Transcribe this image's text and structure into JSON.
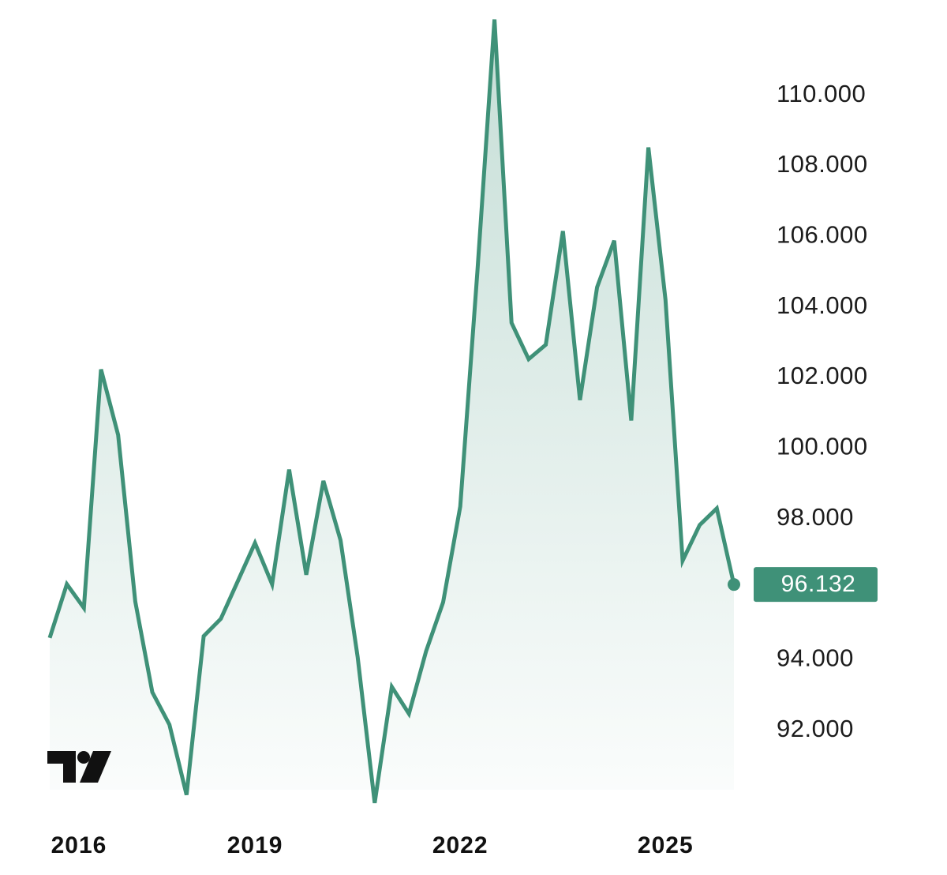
{
  "chart_data": {
    "type": "line",
    "color": "#3f9178",
    "x": [
      2016,
      2016.25,
      2016.5,
      2016.75,
      2017,
      2017.25,
      2017.5,
      2017.75,
      2018,
      2018.25,
      2018.5,
      2018.75,
      2019,
      2019.25,
      2019.5,
      2019.75,
      2020,
      2020.25,
      2020.5,
      2020.75,
      2021,
      2021.25,
      2021.5,
      2021.75,
      2022,
      2022.25,
      2022.5,
      2022.75,
      2023,
      2023.25,
      2023.5,
      2023.75,
      2024,
      2024.25,
      2024.5,
      2024.75,
      2025,
      2025.25,
      2025.5,
      2025.75,
      2026
    ],
    "values": [
      94.62,
      96.14,
      95.47,
      102.23,
      100.37,
      95.65,
      93.08,
      92.16,
      90.17,
      94.67,
      95.16,
      96.23,
      97.31,
      96.14,
      99.39,
      96.41,
      99.07,
      97.39,
      94.08,
      89.94,
      93.23,
      92.47,
      94.24,
      95.63,
      98.34,
      104.99,
      112.15,
      103.55,
      102.52,
      102.93,
      106.15,
      101.36,
      104.56,
      105.88,
      100.78,
      108.52,
      104.2,
      96.81,
      97.82,
      98.29,
      96.132
    ],
    "xlim": [
      2016,
      2026
    ],
    "xticks": [
      2016,
      2019,
      2022,
      2025
    ],
    "ylim": [
      89.6,
      112.7
    ],
    "yticks": [
      {
        "value": 92,
        "label": "92.000"
      },
      {
        "value": 94,
        "label": "94.000"
      },
      {
        "value": 98,
        "label": "98.000"
      },
      {
        "value": 100,
        "label": "100.000"
      },
      {
        "value": 102,
        "label": "102.000"
      },
      {
        "value": 104,
        "label": "104.000"
      },
      {
        "value": 106,
        "label": "106.000"
      },
      {
        "value": 108,
        "label": "108.000"
      },
      {
        "value": 110,
        "label": "110.000"
      }
    ],
    "grid": false
  }
}
